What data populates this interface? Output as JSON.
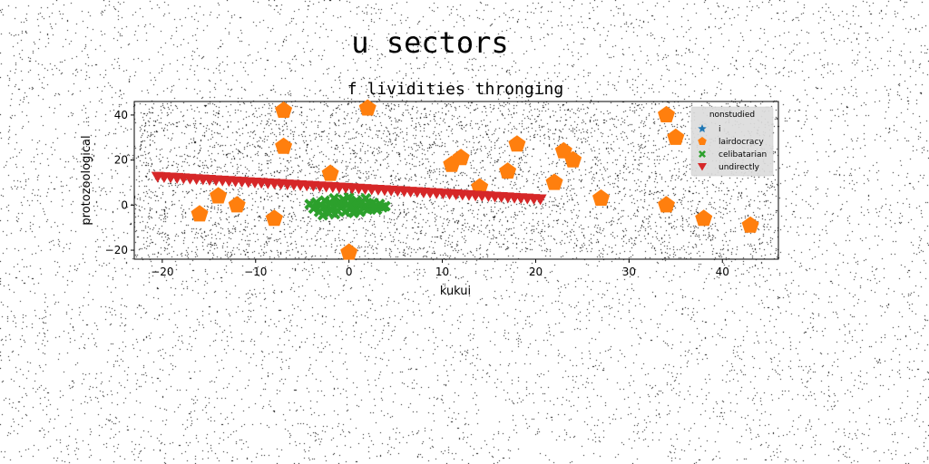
{
  "chart_data": {
    "type": "scatter",
    "title": "u sectors",
    "subtitle": "f lividities thronging",
    "xlabel": "kukui",
    "ylabel": "protozoological",
    "xlim": [
      -23,
      46
    ],
    "ylim": [
      -24,
      46
    ],
    "xticks": [
      -20,
      -10,
      0,
      10,
      20,
      30,
      40
    ],
    "yticks": [
      -20,
      0,
      20,
      40
    ],
    "grid": false,
    "legend": {
      "title": "nonstudied",
      "placement": "top-right",
      "entries": [
        "i",
        "lairdocracy",
        "celibatarian",
        "undirectly"
      ]
    },
    "series": [
      {
        "name": "i",
        "marker": "star",
        "color": "#1f77b4",
        "points": []
      },
      {
        "name": "lairdocracy",
        "marker": "pentagon",
        "color": "#ff7f0e",
        "points": [
          [
            -16,
            -4
          ],
          [
            -14,
            4
          ],
          [
            -12,
            0
          ],
          [
            -8,
            -6
          ],
          [
            -7,
            42
          ],
          [
            -7,
            26
          ],
          [
            -2,
            14
          ],
          [
            0,
            -21
          ],
          [
            2,
            43
          ],
          [
            11,
            18
          ],
          [
            12,
            21
          ],
          [
            14,
            8
          ],
          [
            17,
            15
          ],
          [
            18,
            27
          ],
          [
            22,
            10
          ],
          [
            23,
            24
          ],
          [
            24,
            20
          ],
          [
            27,
            3
          ],
          [
            34,
            40
          ],
          [
            34,
            0
          ],
          [
            35,
            30
          ],
          [
            38,
            -6
          ],
          [
            43,
            -9
          ]
        ]
      },
      {
        "name": "celibatarian",
        "marker": "x",
        "color": "#2ca02c",
        "points": [
          [
            -4.2,
            0.4
          ],
          [
            -3.8,
            -1.5
          ],
          [
            -3.5,
            1.2
          ],
          [
            -3.2,
            -3.0
          ],
          [
            -3.0,
            0.0
          ],
          [
            -2.8,
            -4.5
          ],
          [
            -2.6,
            2.0
          ],
          [
            -2.4,
            -1.0
          ],
          [
            -2.2,
            -3.5
          ],
          [
            -2.0,
            1.0
          ],
          [
            -1.8,
            -2.0
          ],
          [
            -1.6,
            3.0
          ],
          [
            -1.4,
            0.5
          ],
          [
            -1.2,
            -2.5
          ],
          [
            -1.0,
            1.5
          ],
          [
            -0.8,
            -1.0
          ],
          [
            -0.6,
            2.5
          ],
          [
            -0.4,
            -3.0
          ],
          [
            -0.2,
            0.0
          ],
          [
            0.0,
            3.5
          ],
          [
            0.2,
            -1.5
          ],
          [
            0.4,
            1.0
          ],
          [
            0.6,
            -2.5
          ],
          [
            0.8,
            2.0
          ],
          [
            1.0,
            0.0
          ],
          [
            1.2,
            -3.0
          ],
          [
            1.4,
            1.5
          ],
          [
            1.6,
            -1.0
          ],
          [
            1.8,
            3.0
          ],
          [
            2.0,
            -2.0
          ],
          [
            2.2,
            0.5
          ],
          [
            2.4,
            -1.5
          ],
          [
            2.6,
            1.0
          ],
          [
            2.8,
            -0.5
          ],
          [
            3.0,
            -2.0
          ],
          [
            3.3,
            0.5
          ],
          [
            3.6,
            -1.0
          ],
          [
            3.9,
            -0.5
          ],
          [
            -1.5,
            -4.0
          ],
          [
            0.5,
            -3.5
          ]
        ]
      },
      {
        "name": "undirectly",
        "marker": "triangle-down",
        "color": "#d62728",
        "line": {
          "x_start": -20.5,
          "y_start": 12.5,
          "x_end": 20.5,
          "y_end": 2.5,
          "count": 60
        }
      }
    ]
  }
}
